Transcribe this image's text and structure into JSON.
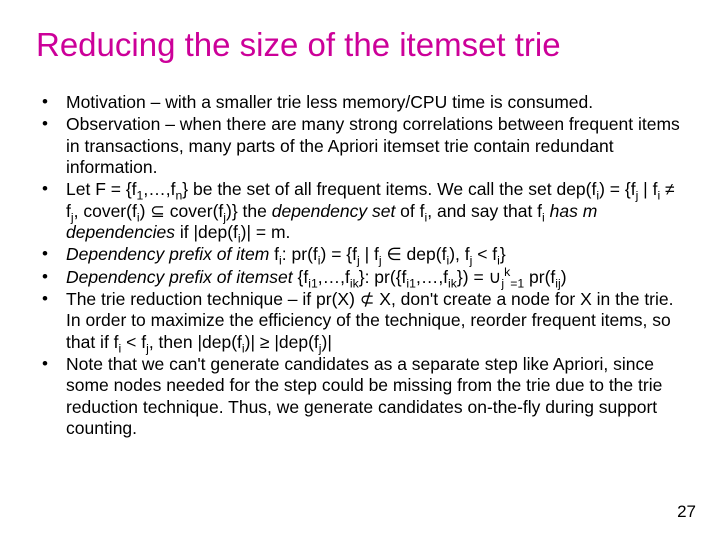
{
  "title": "Reducing the size of the itemset trie",
  "title_color": "#cc0099",
  "title_fontsize": 33,
  "body_color": "#000000",
  "body_fontsize": 17.5,
  "background_color": "#ffffff",
  "page_number": "27",
  "bullets": [
    "Motivation – with a smaller trie less memory/CPU time is consumed.",
    "Observation – when there are many strong correlations between frequent items in transactions, many parts of the Apriori itemset trie contain redundant information.",
    "Let F = {f<sub>1</sub>,…,f<sub>n</sub>} be the set of all frequent items. We call the set dep(f<sub>i</sub>) = {f<sub>j</sub> | f<sub>i</sub> ≠ f<sub>j</sub>, cover(f<sub>i</sub>) ⊆ cover(f<sub>j</sub>)} the <span class=\"it\">dependency set</span> of f<sub>i</sub>, and say that f<sub>i</sub> <span class=\"it\">has m dependencies</span> if |dep(f<sub>i</sub>)| = m.",
    "<span class=\"it\">Dependency prefix of item</span> f<sub>i</sub>: pr(f<sub>i</sub>) = {f<sub>j</sub> | f<sub>j</sub> ∈ dep(f<sub>i</sub>), f<sub>j</sub> &lt; f<sub>i</sub>}",
    "<span class=\"it\">Dependency prefix of itemset</span> {f<sub>i1</sub>,…,f<sub>ik</sub>}: pr({f<sub>i1</sub>,…,f<sub>ik</sub>}) = ∪<sub>j</sub><sup>k</sup><sub>=1</sub> pr(f<sub>ij</sub>)",
    "The trie reduction technique – if pr(X) ⊄ X, don't create a node for X in the trie. In order to maximize the efficiency of the technique, reorder frequent items, so that if f<sub>i</sub> &lt; f<sub>j</sub>, then |dep(f<sub>i</sub>)| ≥ |dep(f<sub>j</sub>)|",
    "Note that we can't generate candidates as a separate step like Apriori, since some nodes needed for the step could be missing from the trie due to the trie reduction technique. Thus, we generate candidates on-the-fly during support counting."
  ]
}
